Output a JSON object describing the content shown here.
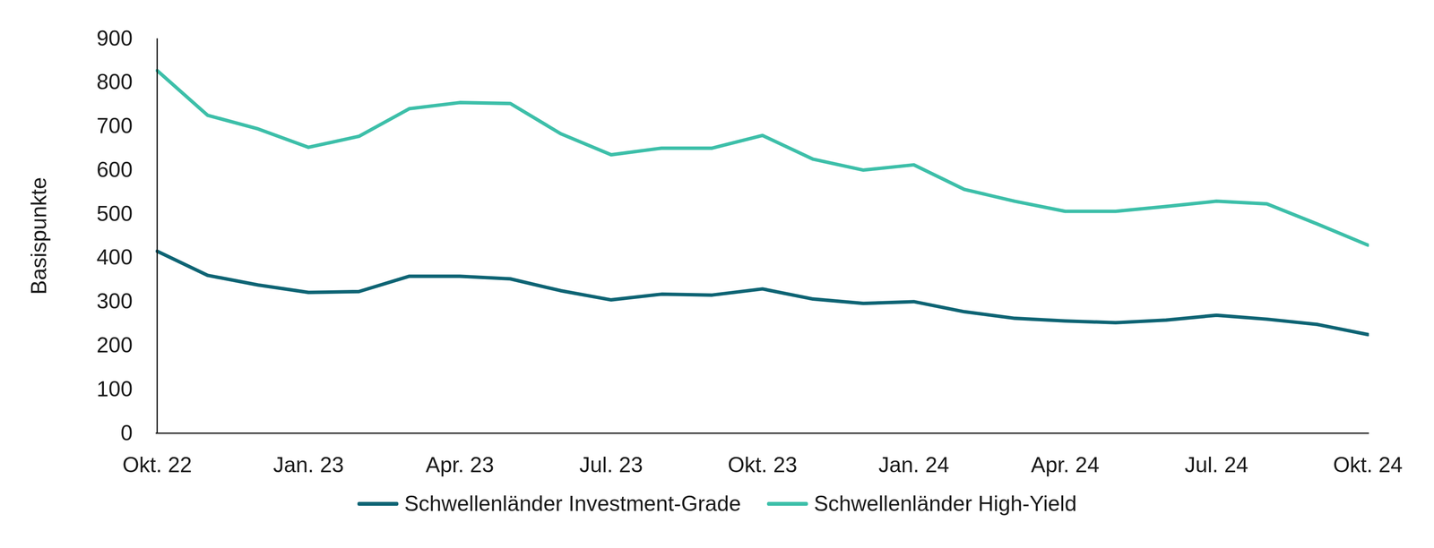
{
  "chart_data": {
    "type": "line",
    "categories": [
      "Okt. 22",
      null,
      null,
      "Jan. 23",
      null,
      null,
      "Apr. 23",
      null,
      null,
      "Jul. 23",
      null,
      null,
      "Okt. 23",
      null,
      null,
      "Jan. 24",
      null,
      null,
      "Apr. 24",
      null,
      null,
      "Jul. 24",
      null,
      null,
      "Okt. 24"
    ],
    "y_label": "Basispunkte",
    "ylim": [
      0,
      900
    ],
    "yticks": [
      0,
      100,
      200,
      300,
      400,
      500,
      600,
      700,
      800,
      900
    ],
    "grid": false,
    "legend": "bottom",
    "series": [
      {
        "name": "Schwellenländer Investment-Grade",
        "color": "#0e6474",
        "values": [
          415,
          360,
          338,
          321,
          323,
          358,
          358,
          352,
          325,
          304,
          317,
          315,
          329,
          306,
          296,
          300,
          277,
          262,
          256,
          252,
          258,
          269,
          260,
          248,
          225
        ]
      },
      {
        "name": "Schwellenländer High-Yield",
        "color": "#3dbfa9",
        "values": [
          827,
          725,
          694,
          652,
          677,
          740,
          754,
          752,
          683,
          635,
          650,
          650,
          679,
          625,
          600,
          612,
          556,
          529,
          506,
          506,
          517,
          529,
          523,
          477,
          429
        ]
      }
    ]
  }
}
